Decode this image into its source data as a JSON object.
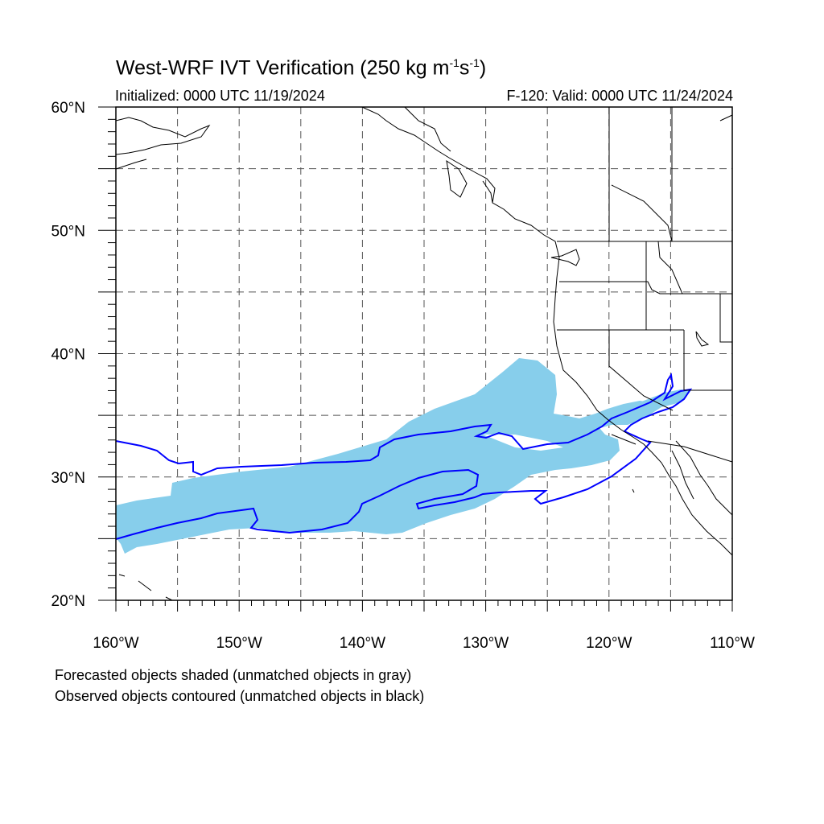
{
  "title": {
    "main": "West-WRF IVT Verification (250 kg m",
    "exp1": "-1",
    "mid": "s",
    "exp2": "-1",
    "end": ")"
  },
  "subtitle_left": "Initialized: 0000 UTC 11/19/2024",
  "subtitle_right": "F-120: Valid: 0000 UTC 11/24/2024",
  "map": {
    "lon_range": [
      -160,
      -110
    ],
    "lat_range": [
      20,
      60
    ],
    "lat_labels": [
      "20°N",
      "30°N",
      "40°N",
      "50°N",
      "60°N"
    ],
    "lon_labels": [
      "160°W",
      "150°W",
      "140°W",
      "130°W",
      "120°W",
      "110°W"
    ],
    "gridlines": "dashed every 5°",
    "forecast_color": "#87ceeb",
    "observed_color": "#0000ff",
    "coastline_color": "#000000"
  },
  "notes": [
    "Forecasted objects shaded (unmatched objects in gray)",
    "Observed objects contoured (unmatched objects in black)"
  ]
}
